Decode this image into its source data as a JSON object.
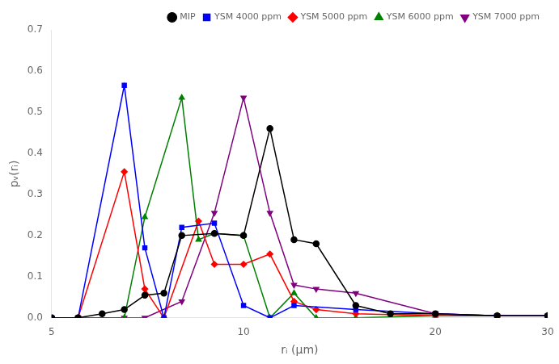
{
  "chart_data": {
    "type": "line",
    "xlabel": "rᵢ (μm)",
    "ylabel": "pᵥ(rᵢ)",
    "log": "x",
    "xlim": [
      5,
      30
    ],
    "ylim": [
      0,
      0.7
    ],
    "xticks": [
      5,
      10,
      20,
      30
    ],
    "yticks": [
      {
        "value": 0,
        "label": "0.0"
      },
      0.1,
      0.2,
      0.3,
      0.4,
      0.5,
      0.6,
      0.7
    ],
    "grid": false,
    "legend": "upper right",
    "series": [
      {
        "name": "MIP",
        "color": "black",
        "marker": "circle",
        "x": [
          5.0,
          5.5,
          6.0,
          6.5,
          7.0,
          7.5,
          8.0,
          9.0,
          10.0,
          11.0,
          12.0,
          13.0,
          15.0,
          17.0,
          20.0,
          25.0,
          30.0
        ],
        "values": [
          0.0,
          0.0,
          0.01,
          0.02,
          0.055,
          0.06,
          0.2,
          0.205,
          0.2,
          0.46,
          0.19,
          0.18,
          0.03,
          0.01,
          0.01,
          0.005,
          0.005
        ]
      },
      {
        "name": "YSM 4000 ppm",
        "color": "blue",
        "marker": "square",
        "x": [
          5.0,
          5.5,
          6.5,
          7.0,
          7.5,
          8.0,
          9.0,
          10.0,
          11.0,
          12.0,
          15.0,
          20.0,
          25.0,
          30.0
        ],
        "values": [
          0.0,
          0.0,
          0.565,
          0.17,
          0.0,
          0.22,
          0.23,
          0.03,
          0.0,
          0.03,
          0.02,
          0.01,
          0.005,
          0.005
        ]
      },
      {
        "name": "YSM 5000 ppm",
        "color": "red",
        "marker": "diamond",
        "x": [
          5.0,
          5.5,
          6.5,
          7.0,
          7.5,
          8.5,
          9.0,
          10.0,
          11.0,
          12.0,
          13.0,
          15.0,
          20.0,
          25.0,
          30.0
        ],
        "values": [
          0.0,
          0.0,
          0.355,
          0.07,
          0.0,
          0.235,
          0.13,
          0.13,
          0.155,
          0.04,
          0.02,
          0.01,
          0.005,
          0.005,
          0.005
        ]
      },
      {
        "name": "YSM 6000 ppm",
        "color": "green",
        "marker": "triangle_up",
        "x": [
          5.0,
          5.5,
          6.5,
          7.0,
          8.0,
          8.5,
          9.0,
          10.0,
          11.0,
          12.0,
          13.0,
          15.0,
          20.0,
          25.0,
          30.0
        ],
        "values": [
          0.0,
          0.0,
          0.0,
          0.245,
          0.535,
          0.19,
          0.205,
          0.2,
          0.0,
          0.06,
          0.0,
          0.0,
          0.005,
          0.005,
          0.005
        ]
      },
      {
        "name": "YSM 7000 ppm",
        "color": "purple",
        "marker": "triangle_down",
        "x": [
          5.0,
          5.5,
          6.5,
          7.0,
          8.0,
          9.0,
          10.0,
          11.0,
          12.0,
          13.0,
          15.0,
          20.0,
          25.0,
          30.0
        ],
        "values": [
          0.0,
          0.0,
          0.0,
          0.0,
          0.04,
          0.255,
          0.535,
          0.255,
          0.08,
          0.07,
          0.06,
          0.01,
          0.005,
          0.005
        ]
      }
    ]
  }
}
